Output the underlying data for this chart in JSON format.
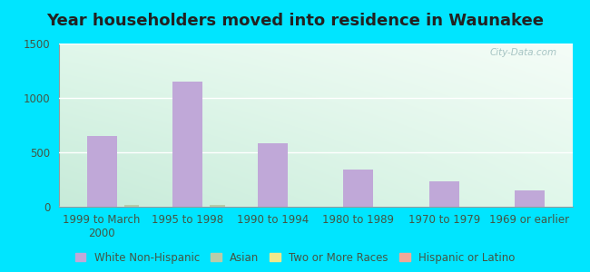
{
  "title": "Year householders moved into residence in Waunakee",
  "categories": [
    "1999 to March\n2000",
    "1995 to 1998",
    "1990 to 1994",
    "1980 to 1989",
    "1970 to 1979",
    "1969 or earlier"
  ],
  "white_non_hispanic": [
    650,
    1150,
    580,
    340,
    230,
    150
  ],
  "asian": [
    20,
    20,
    0,
    0,
    0,
    0
  ],
  "two_or_more": [
    0,
    0,
    0,
    0,
    0,
    0
  ],
  "hispanic": [
    0,
    0,
    0,
    0,
    0,
    0
  ],
  "bar_width": 0.35,
  "ylim": [
    0,
    1500
  ],
  "yticks": [
    0,
    500,
    1000,
    1500
  ],
  "bar_color_white": "#c0a8d8",
  "bar_color_asian": "#b8ccaa",
  "bar_color_two": "#f0e88a",
  "bar_color_hispanic": "#f0a898",
  "legend_colors": [
    "#c0a8d8",
    "#b8ccaa",
    "#f0e88a",
    "#f0a898"
  ],
  "legend_labels": [
    "White Non-Hispanic",
    "Asian",
    "Two or More Races",
    "Hispanic or Latino"
  ],
  "background_outer": "#00e5ff",
  "background_plot_top_left": "#ddf0e8",
  "background_plot_top_right": "#f0f8f8",
  "background_plot_bottom_left": "#c8e8d8",
  "watermark": "City-Data.com",
  "title_fontsize": 13,
  "tick_fontsize": 8.5,
  "legend_fontsize": 8.5
}
